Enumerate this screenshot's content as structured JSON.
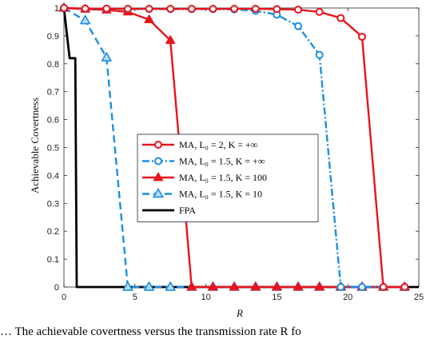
{
  "chart_data": {
    "type": "line",
    "xlabel": "R",
    "ylabel": "Achievable Covertness",
    "xlim": [
      0,
      25
    ],
    "ylim": [
      0,
      1
    ],
    "xticks": [
      0,
      5,
      10,
      15,
      20,
      25
    ],
    "yticks": [
      0,
      0.1,
      0.2,
      0.3,
      0.4,
      0.5,
      0.6,
      0.7,
      0.8,
      0.9,
      1
    ],
    "xtick_labels": [
      "0",
      "5",
      "10",
      "15",
      "20",
      "25"
    ],
    "ytick_labels": [
      "0",
      "0.1",
      "0.2",
      "0.3",
      "0.4",
      "0.5",
      "0.6",
      "0.7",
      "0.8",
      "0.9",
      "1"
    ],
    "grid": false,
    "legend_position": "center",
    "series": [
      {
        "name": "MA, L0 = 2, K = +∞",
        "legend_label": "MA, L₀ = 2, K = +∞",
        "color": "#e8141c",
        "line_style": "solid",
        "marker": "circle",
        "marker_x": [
          0,
          1.5,
          3,
          4.5,
          6,
          7.5,
          9,
          10.5,
          12,
          13.5,
          15,
          16.5,
          18,
          19.5,
          21,
          22.5,
          24
        ],
        "x": [
          0,
          1.5,
          3,
          4.5,
          6,
          7.5,
          9,
          10.5,
          12,
          13.5,
          15,
          16.5,
          18,
          19.5,
          21,
          22.5,
          24
        ],
        "values": [
          1,
          0.998,
          0.998,
          0.997,
          0.997,
          0.997,
          0.997,
          0.997,
          0.997,
          0.997,
          0.996,
          0.994,
          0.986,
          0.964,
          0.897,
          0,
          0
        ]
      },
      {
        "name": "MA, L0 = 1.5, K = +∞",
        "legend_label": "MA, L₀ = 1.5, K = +∞",
        "color": "#1a8fe3",
        "line_style": "dashdot",
        "marker": "circle",
        "x": [
          0,
          1.5,
          3,
          4.5,
          6,
          7.5,
          9,
          10.5,
          12,
          13.5,
          15,
          16.5,
          18,
          19.5,
          21,
          22.5,
          24
        ],
        "values": [
          1,
          0.997,
          0.997,
          0.996,
          0.996,
          0.996,
          0.996,
          0.996,
          0.995,
          0.99,
          0.976,
          0.935,
          0.832,
          0,
          0,
          0,
          0
        ]
      },
      {
        "name": "MA, L0 = 1.5, K = 100",
        "legend_label": "MA, L₀ = 1.5, K = 100",
        "color": "#e8141c",
        "line_style": "solid",
        "marker": "triangle",
        "x": [
          0,
          1.5,
          3,
          4.5,
          6,
          7.5,
          9,
          10.5,
          12,
          13.5,
          15,
          16.5,
          18,
          19.5,
          21,
          22.5,
          24
        ],
        "values": [
          1,
          0.996,
          0.993,
          0.986,
          0.958,
          0.884,
          0,
          0,
          0,
          0,
          0,
          0,
          0,
          0,
          0,
          0,
          0
        ]
      },
      {
        "name": "MA, L0 = 1.5, K = 10",
        "legend_label": "MA, L₀ = 1.5, K = 10",
        "color": "#1a8fe3",
        "line_style": "dash",
        "marker": "triangle",
        "x": [
          0,
          1.5,
          3,
          4.5,
          6,
          7.5,
          9,
          10.5,
          12,
          13.5,
          15,
          16.5,
          18,
          19.5,
          21,
          22.5,
          24
        ],
        "values": [
          1,
          0.955,
          0.822,
          0,
          0,
          0,
          0,
          0,
          0,
          0,
          0,
          0,
          0,
          0,
          0,
          0,
          0
        ]
      },
      {
        "name": "FPA",
        "legend_label": "FPA",
        "color": "#000000",
        "line_style": "solid",
        "marker": "none",
        "x": [
          0,
          0.4,
          0.8,
          0.9,
          25
        ],
        "values": [
          1,
          0.82,
          0.82,
          0,
          0
        ]
      }
    ]
  },
  "caption": "…  The achievable covertness versus the transmission rate R fo"
}
